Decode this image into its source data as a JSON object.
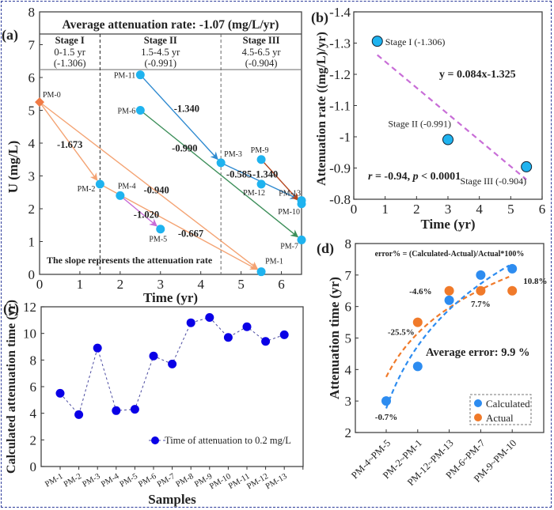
{
  "chart_data": [
    {
      "panel": "(a)",
      "type": "scatter",
      "title": "Average attenuation rate: -1.07 (mg/L/yr)",
      "xlabel": "Time (yr)",
      "ylabel": "U (mg/L)",
      "xlim": [
        0,
        6.5
      ],
      "ylim": [
        0,
        8
      ],
      "xticks": [
        0,
        1,
        2,
        3,
        4,
        5,
        6
      ],
      "yticks": [
        0,
        1,
        2,
        3,
        4,
        5,
        6,
        7,
        8
      ],
      "stages": [
        {
          "name": "Stage I",
          "range": "0-1.5 yr",
          "rate": "(-1.306)"
        },
        {
          "name": "Stage II",
          "range": "1.5-4.5 yr",
          "rate": "(-0.991)"
        },
        {
          "name": "Stage III",
          "range": "4.5-6.5 yr",
          "rate": "(-0.904)"
        }
      ],
      "stage_boundaries": [
        1.5,
        4.5
      ],
      "points": [
        {
          "label": "PM-0",
          "x": 0,
          "y": 5.25,
          "marker": "diamond"
        },
        {
          "label": "PM-1",
          "x": 5.5,
          "y": 0.08
        },
        {
          "label": "PM-2",
          "x": 1.5,
          "y": 2.75
        },
        {
          "label": "PM-3",
          "x": 4.5,
          "y": 3.4
        },
        {
          "label": "PM-4",
          "x": 2.0,
          "y": 2.4
        },
        {
          "label": "PM-5",
          "x": 3.0,
          "y": 1.38
        },
        {
          "label": "PM-6",
          "x": 2.5,
          "y": 5.0
        },
        {
          "label": "PM-7",
          "x": 6.5,
          "y": 1.05
        },
        {
          "label": "PM-9",
          "x": 5.5,
          "y": 3.5
        },
        {
          "label": "PM-10",
          "x": 6.5,
          "y": 2.15
        },
        {
          "label": "PM-11",
          "x": 2.5,
          "y": 6.08
        },
        {
          "label": "PM-12",
          "x": 5.5,
          "y": 2.75
        },
        {
          "label": "PM-13",
          "x": 6.5,
          "y": 2.25
        }
      ],
      "arrows": [
        {
          "from": "PM-0",
          "to": "PM-2",
          "rate": "-1.673",
          "color": "#f4a373"
        },
        {
          "from": "PM-0",
          "to": "PM-1",
          "rate": "-0.940",
          "color": "#f4a373"
        },
        {
          "from": "PM-2",
          "to": "PM-1",
          "rate": "-0.667",
          "color": "#f4a373"
        },
        {
          "from": "PM-4",
          "to": "PM-5",
          "rate": "-1.020",
          "color": "#c86dd7"
        },
        {
          "from": "PM-11",
          "to": "PM-3",
          "rate": "-1.340",
          "color": "#2f8ad0"
        },
        {
          "from": "PM-3",
          "to": "PM-13",
          "rate": "-0.585",
          "color": "#2f8ad0"
        },
        {
          "from": "PM-6",
          "to": "PM-7",
          "rate": "-0.990",
          "color": "#3d8f5a"
        },
        {
          "from": "PM-9",
          "to": "PM-10",
          "rate": "-1.340",
          "color": "#b5461f"
        }
      ],
      "annotation": "The slope represents the attenuation rate"
    },
    {
      "panel": "(b)",
      "type": "scatter",
      "xlabel": "Time (yr)",
      "ylabel": "Attenuation rate ((mg/L)/yr)",
      "xlim": [
        0,
        6
      ],
      "ylim": [
        -0.8,
        -1.4
      ],
      "xticks": [
        0,
        1,
        2,
        3,
        4,
        5,
        6
      ],
      "yticks": [
        -1.4,
        -1.3,
        -1.2,
        -1.1,
        -1,
        -0.9,
        -0.8
      ],
      "ytick_labels": [
        "-1.4",
        "-1.3",
        "-1.2",
        "-1.1",
        "-1",
        "-0.9",
        "-0.8"
      ],
      "points": [
        {
          "label": "Stage I (-1.306)",
          "x": 0.75,
          "y": -1.306
        },
        {
          "label": "Stage II (-0.991)",
          "x": 3.0,
          "y": -0.991
        },
        {
          "label": "Stage III (-0.904)",
          "x": 5.5,
          "y": -0.904
        }
      ],
      "fit": {
        "equation": "y = 0.084x-1.325",
        "slope": 0.084,
        "intercept": -1.325,
        "x_range": [
          0.75,
          5.5
        ],
        "color": "#c86dd7"
      },
      "stats": {
        "r_label": "r",
        "r_text": " = -0.94, ",
        "p_label": "p",
        "p_text": " < 0.0001"
      }
    },
    {
      "panel": "(c)",
      "type": "line",
      "xlabel": "Samples",
      "ylabel": "Calculated attenuation time (yr)",
      "ylim": [
        0,
        12
      ],
      "yticks": [
        0,
        2,
        4,
        6,
        8,
        10,
        12
      ],
      "categories": [
        "PM-1",
        "PM-2",
        "PM-3",
        "PM-4",
        "PM-5",
        "PM-6",
        "PM-7",
        "PM-8",
        "PM-9",
        "PM-10",
        "PM-11",
        "PM-12",
        "PM-13"
      ],
      "series": [
        {
          "name": "Time of attenuation to 0.2 mg/L",
          "values": [
            5.5,
            3.9,
            8.9,
            4.2,
            4.3,
            8.3,
            7.7,
            10.8,
            11.2,
            9.7,
            10.5,
            9.4,
            9.9
          ],
          "color": "#0a00e6"
        }
      ],
      "legend_position": "bottom-right"
    },
    {
      "panel": "(d)",
      "type": "scatter",
      "ylabel": "Attenuation time (yr)",
      "ylim": [
        2,
        8
      ],
      "yticks": [
        2,
        3,
        4,
        5,
        6,
        7,
        8
      ],
      "categories": [
        "PM-4~PM-5",
        "PM-2~PM-1",
        "PM-12~PM-13",
        "PM-6~PM-7",
        "PM-9~PM-10"
      ],
      "series": [
        {
          "name": "Calculated",
          "values": [
            3.0,
            4.1,
            6.2,
            7.0,
            7.2
          ],
          "color": "#2d8cf0"
        },
        {
          "name": "Actual",
          "values": [
            null,
            5.5,
            6.5,
            6.5,
            6.5
          ],
          "color": "#f07a2a"
        }
      ],
      "errors": [
        "-0.7%",
        "-25.5%",
        "-4.6%",
        "7.7%",
        "10.8%"
      ],
      "formula": "error% = (Calculated-Actual)/Actual*100%",
      "average_error": "Average error: 9.9 %",
      "legend_position": "bottom-right"
    }
  ]
}
